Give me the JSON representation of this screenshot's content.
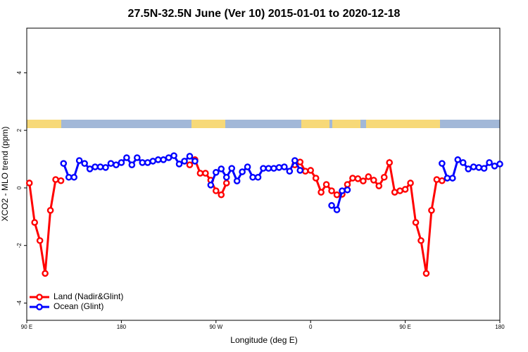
{
  "chart_data": {
    "type": "line",
    "title": "27.5N-32.5N June (Ver 10)   2015-01-01 to 2020-12-18",
    "x_label": "Longitude (deg E)",
    "y_label": "XCO2 - MLO trend (ppm)",
    "xlim": [
      90,
      540
    ],
    "xticks": [
      {
        "value": 90,
        "label": "90 E"
      },
      180,
      {
        "value": 270,
        "label": "90 W"
      },
      {
        "value": 360,
        "label": "0"
      },
      {
        "value": 450,
        "label": "90 E"
      },
      {
        "value": 540,
        "label": "180"
      }
    ],
    "ylim": [
      -4.6,
      5.55
    ],
    "yticks": [
      -4,
      -2,
      0,
      2,
      4
    ],
    "grid": false,
    "legend": "bottom-left",
    "series": [
      {
        "name": "Land (Nadir&Glint)",
        "color": "#ff0000",
        "x": [
          92.5,
          97.5,
          102.5,
          107.5,
          112.5,
          117.5,
          122.5,
          180,
          245,
          250,
          255,
          260,
          265,
          270,
          275,
          280,
          310,
          345,
          350,
          355,
          360,
          365,
          370,
          375,
          380,
          385,
          390,
          395,
          400,
          405,
          410,
          415,
          420,
          425,
          430,
          435,
          440,
          445,
          450,
          455,
          460,
          465,
          470,
          475,
          480,
          485
        ],
        "values": [
          0.17,
          -1.2,
          -1.83,
          -2.97,
          -0.78,
          0.29,
          0.25,
          null,
          0.8,
          0.98,
          0.51,
          0.51,
          0.27,
          -0.1,
          -0.24,
          0.17,
          null,
          0.8,
          0.9,
          0.58,
          0.61,
          0.34,
          -0.15,
          0.12,
          -0.1,
          -0.24,
          -0.22,
          0.12,
          0.34,
          0.32,
          0.24,
          0.39,
          0.27,
          0.07,
          0.37,
          0.88,
          -0.15,
          -0.1,
          -0.05,
          0.17,
          -1.2,
          -1.83,
          -2.97,
          -0.78,
          0.29,
          0.25
        ]
      },
      {
        "name": "Ocean (Glint)",
        "color": "#0000ff",
        "x": [
          125,
          130,
          135,
          140,
          145,
          150,
          155,
          160,
          165,
          170,
          175,
          180,
          185,
          190,
          195,
          200,
          205,
          210,
          215,
          220,
          225,
          230,
          235,
          240,
          245,
          250,
          257.5,
          265,
          270,
          275,
          280,
          285,
          290,
          295,
          300,
          305,
          310,
          315,
          320,
          325,
          330,
          335,
          340,
          345,
          350,
          365,
          380,
          385,
          390,
          395,
          440,
          485,
          490,
          495,
          500,
          505,
          510,
          515,
          520,
          525,
          530,
          535,
          540
        ],
        "values": [
          0.85,
          0.37,
          0.37,
          0.95,
          0.85,
          0.66,
          0.73,
          0.73,
          0.71,
          0.85,
          0.8,
          0.88,
          1.05,
          0.8,
          1.05,
          0.88,
          0.88,
          0.93,
          0.98,
          0.98,
          1.05,
          1.12,
          0.83,
          0.93,
          1.1,
          0.93,
          null,
          0.1,
          0.54,
          0.66,
          0.37,
          0.68,
          0.24,
          0.56,
          0.73,
          0.37,
          0.37,
          0.68,
          0.68,
          0.68,
          0.71,
          0.73,
          0.58,
          0.95,
          0.61,
          null,
          -0.61,
          -0.76,
          -0.1,
          -0.07,
          null,
          0.85,
          0.34,
          0.34,
          0.98,
          0.88,
          0.66,
          0.73,
          0.71,
          0.68,
          0.88,
          0.76,
          0.83
        ]
      }
    ]
  }
}
